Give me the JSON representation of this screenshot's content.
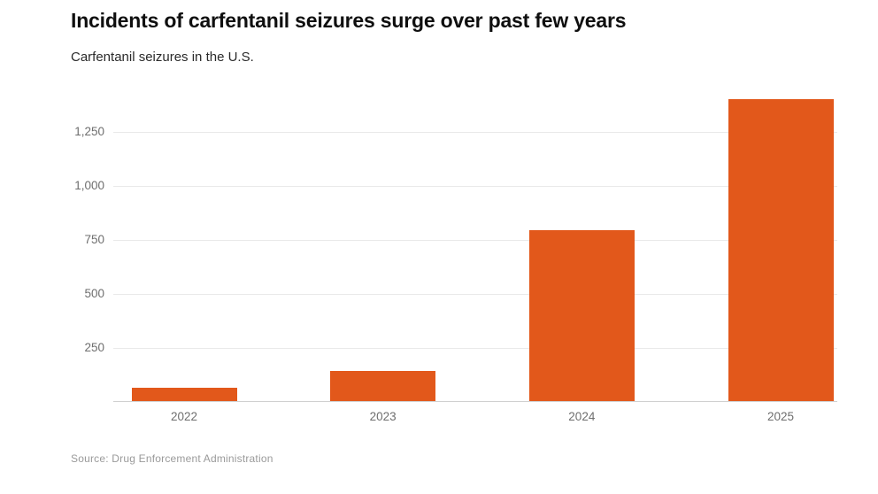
{
  "header": {
    "title": "Incidents of carfentanil seizures surge over past few years",
    "subtitle": "Carfentanil seizures in the U.S."
  },
  "footer": {
    "source": "Source: Drug Enforcement Administration"
  },
  "chart_data": {
    "type": "bar",
    "title": "Incidents of carfentanil seizures surge over past few years",
    "subtitle": "Carfentanil seizures in the U.S.",
    "categories": [
      "2022",
      "2023",
      "2024",
      "2025"
    ],
    "values": [
      60,
      140,
      790,
      1395
    ],
    "xlabel": "",
    "ylabel": "",
    "ylim": [
      0,
      1450
    ],
    "yticks": [
      250,
      500,
      750,
      1000,
      1250
    ],
    "ytick_labels": [
      "250",
      "500",
      "750",
      "1,000",
      "1,250"
    ],
    "grid": true,
    "legend": false,
    "bar_color": "#e2581b",
    "source": "Source: Drug Enforcement Administration"
  }
}
